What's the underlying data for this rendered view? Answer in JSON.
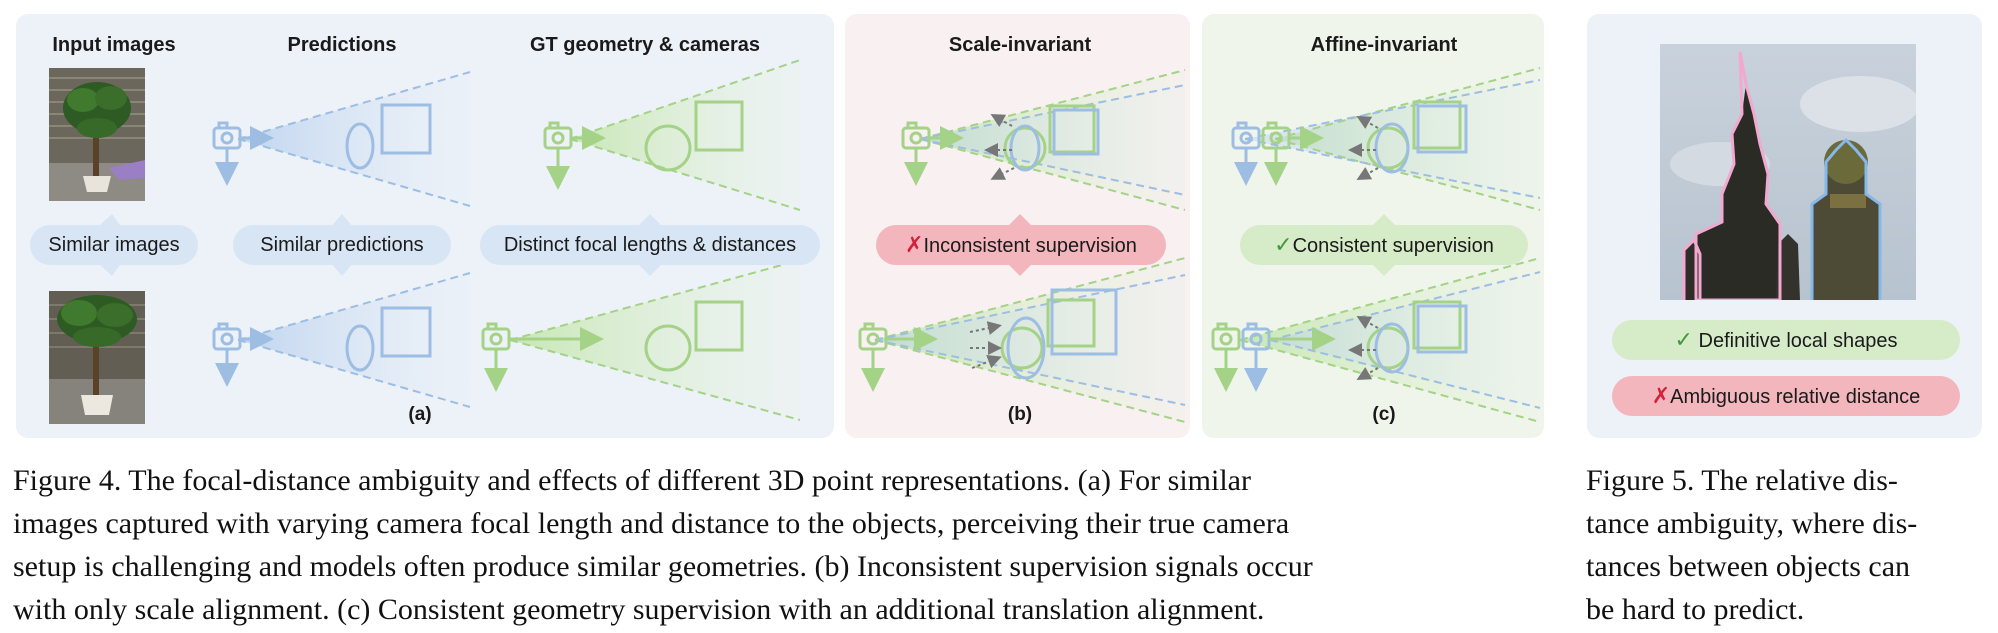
{
  "figure4": {
    "headers": {
      "input_images": "Input images",
      "predictions": "Predictions",
      "gt_geometry": "GT geometry & cameras",
      "scale_invariant": "Scale-invariant",
      "affine_invariant": "Affine-invariant"
    },
    "pills": {
      "similar_images": "Similar images",
      "similar_predictions": "Similar predictions",
      "distinct_focal": "Distinct focal lengths & distances",
      "inconsistent_mark": "✗",
      "inconsistent": "Inconsistent supervision",
      "consistent_mark": "✓",
      "consistent": "Consistent supervision"
    },
    "panel_labels": {
      "a": "(a)",
      "b": "(b)",
      "c": "(c)"
    },
    "caption_lines": [
      "Figure 4.  The focal-distance ambiguity and effects of different 3D point representations.  (a) For similar",
      "images captured with varying camera focal length and distance to the objects, perceiving their true camera",
      "setup is challenging and models often produce similar geometries. (b) Inconsistent supervision signals occur",
      "with only scale alignment. (c) Consistent geometry supervision with an additional translation alignment."
    ]
  },
  "figure5": {
    "pills": {
      "definitive_mark": "✓",
      "definitive": "Definitive local shapes",
      "ambiguous_mark": "✗",
      "ambiguous": "Ambiguous relative distance"
    },
    "caption_lines": [
      "Figure 5.  The relative dis-",
      "tance ambiguity, where dis-",
      "tances between objects can",
      "be hard to predict."
    ]
  },
  "colors": {
    "prediction_blue": "#9dbde3",
    "gt_green": "#a4d287",
    "panel_a_bg": "#edf2f8",
    "panel_b_bg": "#f8f0f1",
    "panel_c_bg": "#f0f5ec",
    "error_red": "#d2213a",
    "check_green": "#3f9c35"
  }
}
